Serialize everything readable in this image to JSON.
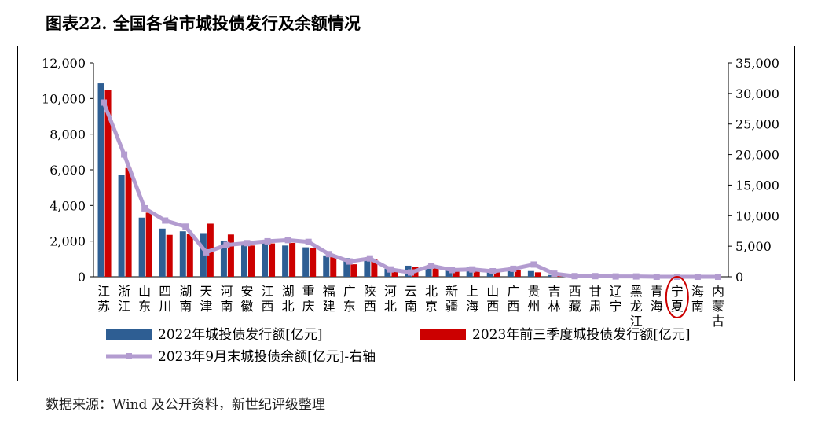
{
  "figure_title": "图表22.  全国各省市城投债发行及余额情况",
  "source_note": "数据来源：Wind 及公开资料，新世纪评级整理",
  "chart_data": {
    "type": "bar",
    "categories": [
      "江苏",
      "浙江",
      "山东",
      "四川",
      "湖南",
      "天津",
      "河南",
      "安徽",
      "江西",
      "湖北",
      "重庆",
      "福建",
      "广东",
      "陕西",
      "河北",
      "云南",
      "北京",
      "新疆",
      "上海",
      "山西",
      "广西",
      "贵州",
      "吉林",
      "西藏",
      "甘肃",
      "辽宁",
      "黑龙江",
      "青海",
      "宁夏",
      "海南",
      "内蒙古"
    ],
    "series": [
      {
        "name": "2022年城投债发行额[亿元]",
        "type": "bar",
        "axis": "left",
        "color": "#2e5e93",
        "values": [
          10850,
          5700,
          3320,
          2700,
          2550,
          2450,
          2030,
          1800,
          1900,
          1750,
          1650,
          1200,
          1050,
          900,
          450,
          620,
          550,
          350,
          520,
          320,
          450,
          320,
          100,
          0,
          0,
          0,
          0,
          0,
          0,
          0,
          0
        ]
      },
      {
        "name": "2023年前三季度城投债发行额[亿元]",
        "type": "bar",
        "axis": "left",
        "color": "#cc0000",
        "values": [
          10500,
          6100,
          3600,
          2350,
          2420,
          2980,
          2370,
          1750,
          1870,
          1900,
          1600,
          1150,
          700,
          1000,
          420,
          530,
          480,
          310,
          480,
          300,
          380,
          250,
          60,
          0,
          0,
          0,
          0,
          0,
          0,
          0,
          0
        ]
      },
      {
        "name": "2023年9月末城投债余额[亿元]-右轴",
        "type": "line",
        "axis": "right",
        "color": "#b39cd0",
        "values": [
          28500,
          20000,
          11200,
          9200,
          8200,
          4000,
          5200,
          5500,
          5800,
          6000,
          5700,
          3700,
          2500,
          3000,
          1200,
          700,
          1800,
          1100,
          1200,
          900,
          1300,
          2000,
          500,
          100,
          100,
          50,
          50,
          0,
          0,
          0,
          0
        ]
      }
    ],
    "y_left": {
      "min": 0,
      "max": 12000,
      "ticks": [
        "0",
        "2,000",
        "4,000",
        "6,000",
        "8,000",
        "10,000",
        "12,000"
      ]
    },
    "y_right": {
      "min": 0,
      "max": 35000,
      "ticks": [
        "0",
        "5,000",
        "10,000",
        "15,000",
        "20,000",
        "25,000",
        "30,000",
        "35,000"
      ]
    },
    "highlight_category": "宁夏",
    "legend_position": "bottom"
  }
}
